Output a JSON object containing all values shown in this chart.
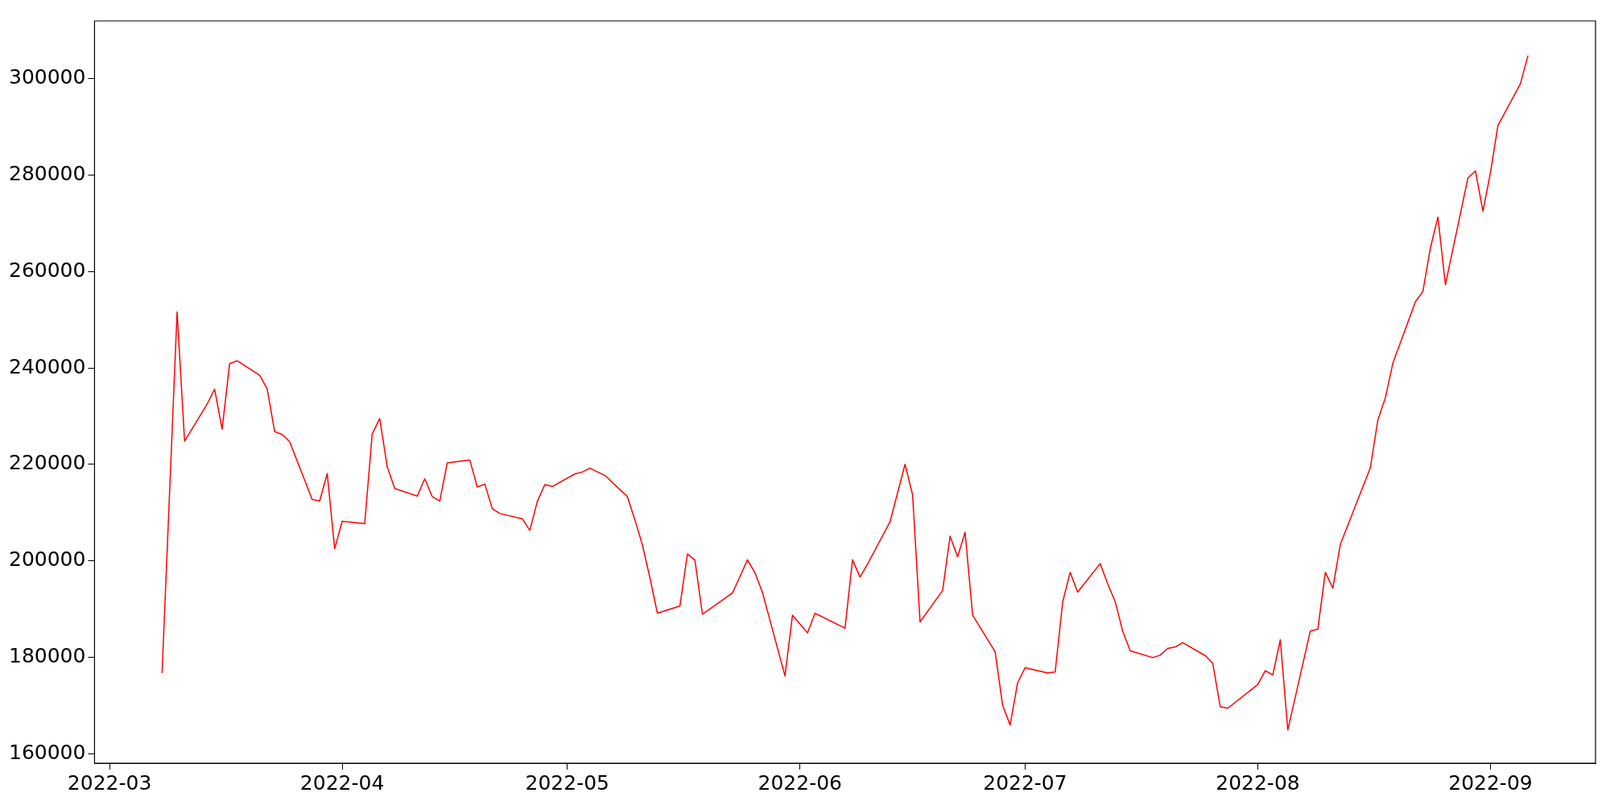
{
  "chart_data": {
    "type": "line",
    "x": [
      "2022-03-08",
      "2022-03-10",
      "2022-03-11",
      "2022-03-14",
      "2022-03-15",
      "2022-03-16",
      "2022-03-17",
      "2022-03-18",
      "2022-03-21",
      "2022-03-22",
      "2022-03-23",
      "2022-03-24",
      "2022-03-25",
      "2022-03-28",
      "2022-03-29",
      "2022-03-30",
      "2022-03-31",
      "2022-04-01",
      "2022-04-04",
      "2022-04-05",
      "2022-04-06",
      "2022-04-07",
      "2022-04-08",
      "2022-04-11",
      "2022-04-12",
      "2022-04-13",
      "2022-04-14",
      "2022-04-15",
      "2022-04-18",
      "2022-04-19",
      "2022-04-20",
      "2022-04-21",
      "2022-04-22",
      "2022-04-25",
      "2022-04-26",
      "2022-04-27",
      "2022-04-28",
      "2022-04-29",
      "2022-05-02",
      "2022-05-03",
      "2022-05-04",
      "2022-05-06",
      "2022-05-09",
      "2022-05-10",
      "2022-05-11",
      "2022-05-12",
      "2022-05-13",
      "2022-05-16",
      "2022-05-17",
      "2022-05-18",
      "2022-05-19",
      "2022-05-20",
      "2022-05-23",
      "2022-05-24",
      "2022-05-25",
      "2022-05-26",
      "2022-05-27",
      "2022-05-30",
      "2022-05-31",
      "2022-06-02",
      "2022-06-03",
      "2022-06-07",
      "2022-06-08",
      "2022-06-09",
      "2022-06-10",
      "2022-06-13",
      "2022-06-15",
      "2022-06-16",
      "2022-06-17",
      "2022-06-20",
      "2022-06-21",
      "2022-06-22",
      "2022-06-23",
      "2022-06-24",
      "2022-06-27",
      "2022-06-28",
      "2022-06-29",
      "2022-06-30",
      "2022-07-01",
      "2022-07-04",
      "2022-07-05",
      "2022-07-06",
      "2022-07-07",
      "2022-07-08",
      "2022-07-11",
      "2022-07-12",
      "2022-07-13",
      "2022-07-14",
      "2022-07-15",
      "2022-07-18",
      "2022-07-19",
      "2022-07-20",
      "2022-07-21",
      "2022-07-22",
      "2022-07-25",
      "2022-07-26",
      "2022-07-27",
      "2022-07-28",
      "2022-08-01",
      "2022-08-02",
      "2022-08-03",
      "2022-08-04",
      "2022-08-05",
      "2022-08-08",
      "2022-08-09",
      "2022-08-10",
      "2022-08-11",
      "2022-08-12",
      "2022-08-16",
      "2022-08-17",
      "2022-08-18",
      "2022-08-19",
      "2022-08-22",
      "2022-08-23",
      "2022-08-24",
      "2022-08-25",
      "2022-08-26",
      "2022-08-29",
      "2022-08-30",
      "2022-08-31",
      "2022-09-01",
      "2022-09-02",
      "2022-09-05",
      "2022-09-06"
    ],
    "series": [
      {
        "color": "#ff0000",
        "values": [
          176700,
          251600,
          224800,
          232500,
          235600,
          227300,
          240900,
          241500,
          238500,
          235700,
          226800,
          226200,
          224700,
          212700,
          212400,
          218100,
          202500,
          208200,
          207700,
          226300,
          229500,
          219500,
          215000,
          213400,
          217000,
          213300,
          212400,
          220300,
          220900,
          215300,
          215900,
          210800,
          209800,
          208700,
          206300,
          212300,
          215800,
          215400,
          218000,
          218400,
          219200,
          217700,
          213300,
          208500,
          203300,
          196500,
          189100,
          190600,
          201400,
          200100,
          188900,
          190000,
          193300,
          196700,
          200200,
          197500,
          193400,
          176100,
          188700,
          185000,
          189100,
          186000,
          200200,
          196600,
          199300,
          208100,
          220000,
          213700,
          187300,
          193800,
          205100,
          200800,
          205900,
          188700,
          181100,
          170000,
          165900,
          174700,
          177800,
          176700,
          176900,
          191400,
          197600,
          193500,
          199400,
          195200,
          191500,
          185400,
          181300,
          179900,
          180400,
          181800,
          182100,
          183000,
          180300,
          178700,
          169700,
          169400,
          174300,
          177200,
          176300,
          183600,
          164900,
          185400,
          185800,
          197600,
          194300,
          203400,
          219300,
          229200,
          233800,
          241000,
          253700,
          255900,
          264900,
          271300,
          257300,
          279400,
          280900,
          272500,
          280500,
          290300,
          299000,
          304800
        ]
      }
    ],
    "xlim": [
      "2022-02-27",
      "2022-09-15"
    ],
    "xticks": [
      {
        "value": "2022-03-01",
        "label": "2022-03"
      },
      {
        "value": "2022-04-01",
        "label": "2022-04"
      },
      {
        "value": "2022-05-01",
        "label": "2022-05"
      },
      {
        "value": "2022-06-01",
        "label": "2022-06"
      },
      {
        "value": "2022-07-01",
        "label": "2022-07"
      },
      {
        "value": "2022-08-01",
        "label": "2022-08"
      },
      {
        "value": "2022-09-01",
        "label": "2022-09"
      }
    ],
    "ylim": [
      158000,
      312000
    ],
    "yticks": [
      160000,
      180000,
      200000,
      220000,
      240000,
      260000,
      280000,
      300000
    ],
    "grid": false,
    "legend": false,
    "marker": "none",
    "line_style": "solid"
  }
}
